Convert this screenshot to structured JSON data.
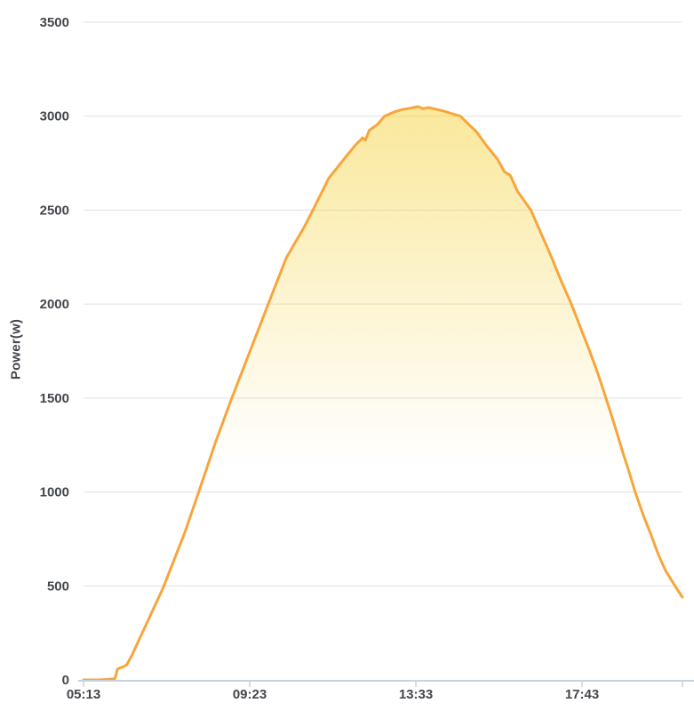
{
  "chart_data": {
    "type": "area",
    "title": "",
    "xlabel": "",
    "ylabel": "Power(w)",
    "ylim": [
      0,
      3500
    ],
    "ytick_step": 500,
    "yticks": [
      "0",
      "500",
      "1000",
      "1500",
      "2000",
      "2500",
      "3000",
      "3500"
    ],
    "xticks": [
      "05:13",
      "09:23",
      "13:33",
      "17:43"
    ],
    "x_start": "05:13",
    "x_end": "20:14",
    "grid": true,
    "legend": false,
    "colors": {
      "line": "#F6A63C",
      "fill_base": "#F5D23C",
      "grid_line": "#E0E0E0",
      "axis_line": "#C9D3DD",
      "tick_text": "#43464b"
    },
    "series": [
      {
        "name": "Power",
        "unit": "W",
        "points": [
          [
            "05:13",
            0
          ],
          [
            "05:35",
            0
          ],
          [
            "05:50",
            3
          ],
          [
            "06:00",
            6
          ],
          [
            "06:02",
            30
          ],
          [
            "06:04",
            57
          ],
          [
            "06:08",
            64
          ],
          [
            "06:14",
            72
          ],
          [
            "06:18",
            80
          ],
          [
            "06:25",
            126
          ],
          [
            "06:33",
            186
          ],
          [
            "06:41",
            247
          ],
          [
            "06:50",
            316
          ],
          [
            "07:00",
            392
          ],
          [
            "07:07",
            445
          ],
          [
            "07:14",
            500
          ],
          [
            "07:25",
            600
          ],
          [
            "07:35",
            690
          ],
          [
            "07:45",
            780
          ],
          [
            "08:00",
            935
          ],
          [
            "08:15",
            1090
          ],
          [
            "08:32",
            1270
          ],
          [
            "08:55",
            1490
          ],
          [
            "09:23",
            1745
          ],
          [
            "09:51",
            2000
          ],
          [
            "10:18",
            2245
          ],
          [
            "10:45",
            2410
          ],
          [
            "10:58",
            2500
          ],
          [
            "11:22",
            2670
          ],
          [
            "11:49",
            2790
          ],
          [
            "12:03",
            2850
          ],
          [
            "12:13",
            2885
          ],
          [
            "12:17",
            2872
          ],
          [
            "12:23",
            2925
          ],
          [
            "12:35",
            2955
          ],
          [
            "12:46",
            3000
          ],
          [
            "13:00",
            3022
          ],
          [
            "13:12",
            3035
          ],
          [
            "13:24",
            3042
          ],
          [
            "13:36",
            3051
          ],
          [
            "13:44",
            3040
          ],
          [
            "13:52",
            3046
          ],
          [
            "14:04",
            3036
          ],
          [
            "14:16",
            3026
          ],
          [
            "14:30",
            3010
          ],
          [
            "14:40",
            3000
          ],
          [
            "14:52",
            2958
          ],
          [
            "15:04",
            2918
          ],
          [
            "15:20",
            2840
          ],
          [
            "15:36",
            2770
          ],
          [
            "15:46",
            2705
          ],
          [
            "15:55",
            2685
          ],
          [
            "16:06",
            2600
          ],
          [
            "16:26",
            2500
          ],
          [
            "16:41",
            2380
          ],
          [
            "16:57",
            2250
          ],
          [
            "17:11",
            2128
          ],
          [
            "17:27",
            2000
          ],
          [
            "17:41",
            1872
          ],
          [
            "17:55",
            1745
          ],
          [
            "18:07",
            1628
          ],
          [
            "18:19",
            1500
          ],
          [
            "18:32",
            1355
          ],
          [
            "18:44",
            1215
          ],
          [
            "18:54",
            1105
          ],
          [
            "19:03",
            1000
          ],
          [
            "19:15",
            878
          ],
          [
            "19:26",
            780
          ],
          [
            "19:38",
            665
          ],
          [
            "19:49",
            580
          ],
          [
            "20:03",
            500
          ],
          [
            "20:14",
            440
          ]
        ]
      }
    ]
  }
}
